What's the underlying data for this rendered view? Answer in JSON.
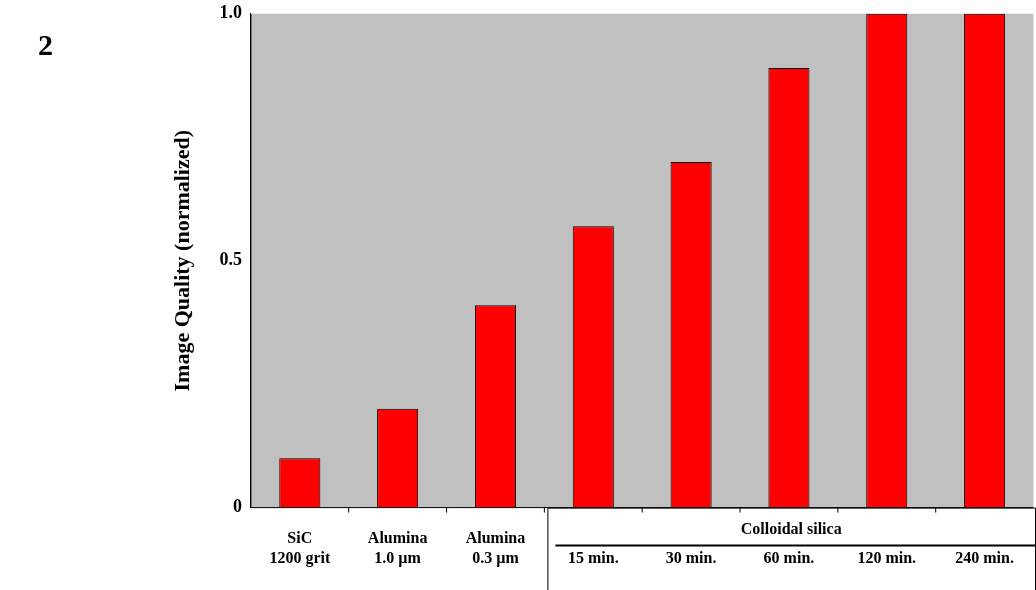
{
  "chart_data": {
    "type": "bar",
    "ylabel": "Image Quality (normalized)",
    "categories": [
      "SiC\n1200 grit",
      "Alumina\n1.0 µm",
      "Alumina\n0.3 µm",
      "15 min.",
      "30 min.",
      "60 min.",
      "120 min.",
      "240 min."
    ],
    "values": [
      0.1,
      0.2,
      0.41,
      0.57,
      0.7,
      0.89,
      1.0,
      1.0
    ],
    "color": "#ff0000",
    "ylim": [
      0,
      1.0
    ],
    "yticks": [
      0,
      {
        "value": 0.5,
        "label": "0.5"
      },
      {
        "value": 1.0,
        "label": "1.0"
      }
    ],
    "grid": false,
    "legend": false,
    "annotations": [
      "2",
      "Colloidal silica"
    ]
  }
}
